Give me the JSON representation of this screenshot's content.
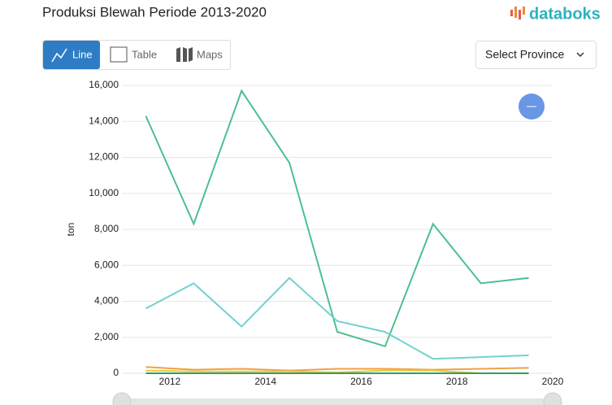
{
  "header": {
    "logo": "databoks",
    "tabs": [
      "Line",
      "Table",
      "Maps"
    ],
    "select": "Select Province"
  },
  "chart_data": {
    "type": "line",
    "title": "Produksi Blewah Periode 2013-2020",
    "ylabel": "ton",
    "x": [
      2011.5,
      2012.5,
      2013.5,
      2014.5,
      2015.5,
      2016.5,
      2017.5,
      2018.5,
      2019.5
    ],
    "xlim": [
      2011,
      2020
    ],
    "xticks": [
      2012,
      2014,
      2016,
      2018,
      2020
    ],
    "ylim": [
      0,
      16000
    ],
    "yticks": [
      0,
      {
        "value": 2000,
        "label": "2,000"
      },
      {
        "value": 4000,
        "label": "4,000"
      },
      {
        "value": 6000,
        "label": "6,000"
      },
      {
        "value": 8000,
        "label": "8,000"
      },
      {
        "value": 10000,
        "label": "10,000"
      },
      {
        "value": 12000,
        "label": "12,000"
      },
      {
        "value": 14000,
        "label": "14,000"
      },
      {
        "value": 16000,
        "label": "16,000"
      }
    ],
    "grid": true,
    "series": [
      {
        "color": "#4cc08f",
        "values": [
          14300,
          8300,
          15700,
          11700,
          2300,
          1500,
          8300,
          5000,
          5300
        ]
      },
      {
        "color": "#72d1cf",
        "values": [
          3600,
          5000,
          2600,
          5300,
          2900,
          2300,
          800,
          900,
          1000
        ]
      },
      {
        "color": "#f0a048",
        "values": [
          350,
          200,
          250,
          150,
          250,
          250,
          200,
          250,
          300
        ]
      },
      {
        "color": "#e8c93a",
        "values": [
          150,
          100,
          100,
          100,
          50,
          150,
          150,
          0,
          0
        ]
      },
      {
        "color": "#2e9e6a",
        "values": [
          0,
          0,
          0,
          0,
          0,
          0,
          0,
          0,
          0
        ]
      }
    ]
  }
}
